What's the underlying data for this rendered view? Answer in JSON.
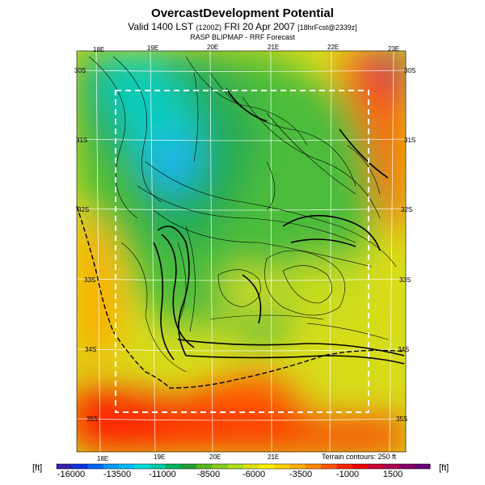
{
  "header": {
    "title": "OvercastDevelopment Potential",
    "valid_main": "Valid 1400 LST",
    "valid_utc": "(1200Z)",
    "valid_date": "FRI 20 Apr 2007",
    "valid_fcst": "[18hrFcst@2339z]",
    "subtitle": "RASP BLIPMAP - RRF Forecast"
  },
  "map": {
    "lon_labels_top": [
      "18E",
      "19E",
      "20E",
      "21E",
      "22E",
      "23E"
    ],
    "lon_labels_bottom": [
      "18E",
      "19E",
      "20E",
      "21E"
    ],
    "lat_labels_left": [
      "30S",
      "31S",
      "32S",
      "33S",
      "34S",
      "35S"
    ],
    "lat_labels_right": [
      "30S",
      "31S",
      "32S",
      "33S",
      "34S",
      "35S"
    ],
    "terrain_note": "Terrain contours: 250 ft"
  },
  "colorbar": {
    "unit_left": "[ft]",
    "unit_right": "[ft]",
    "labels": [
      "-16000",
      "-13500",
      "-11000",
      "-8500",
      "-6000",
      "-3500",
      "-1000",
      "1500"
    ],
    "colors": [
      "#3322aa",
      "#1133dd",
      "#0066ff",
      "#0099ff",
      "#00bbff",
      "#00dddd",
      "#00ccaa",
      "#00b060",
      "#22a030",
      "#55b820",
      "#88cc22",
      "#b0dd20",
      "#dde010",
      "#ffee00",
      "#ffd000",
      "#ffb000",
      "#ff8800",
      "#ff5500",
      "#ff2200",
      "#ee0000",
      "#cc0033",
      "#aa0055",
      "#880066",
      "#660077"
    ]
  }
}
